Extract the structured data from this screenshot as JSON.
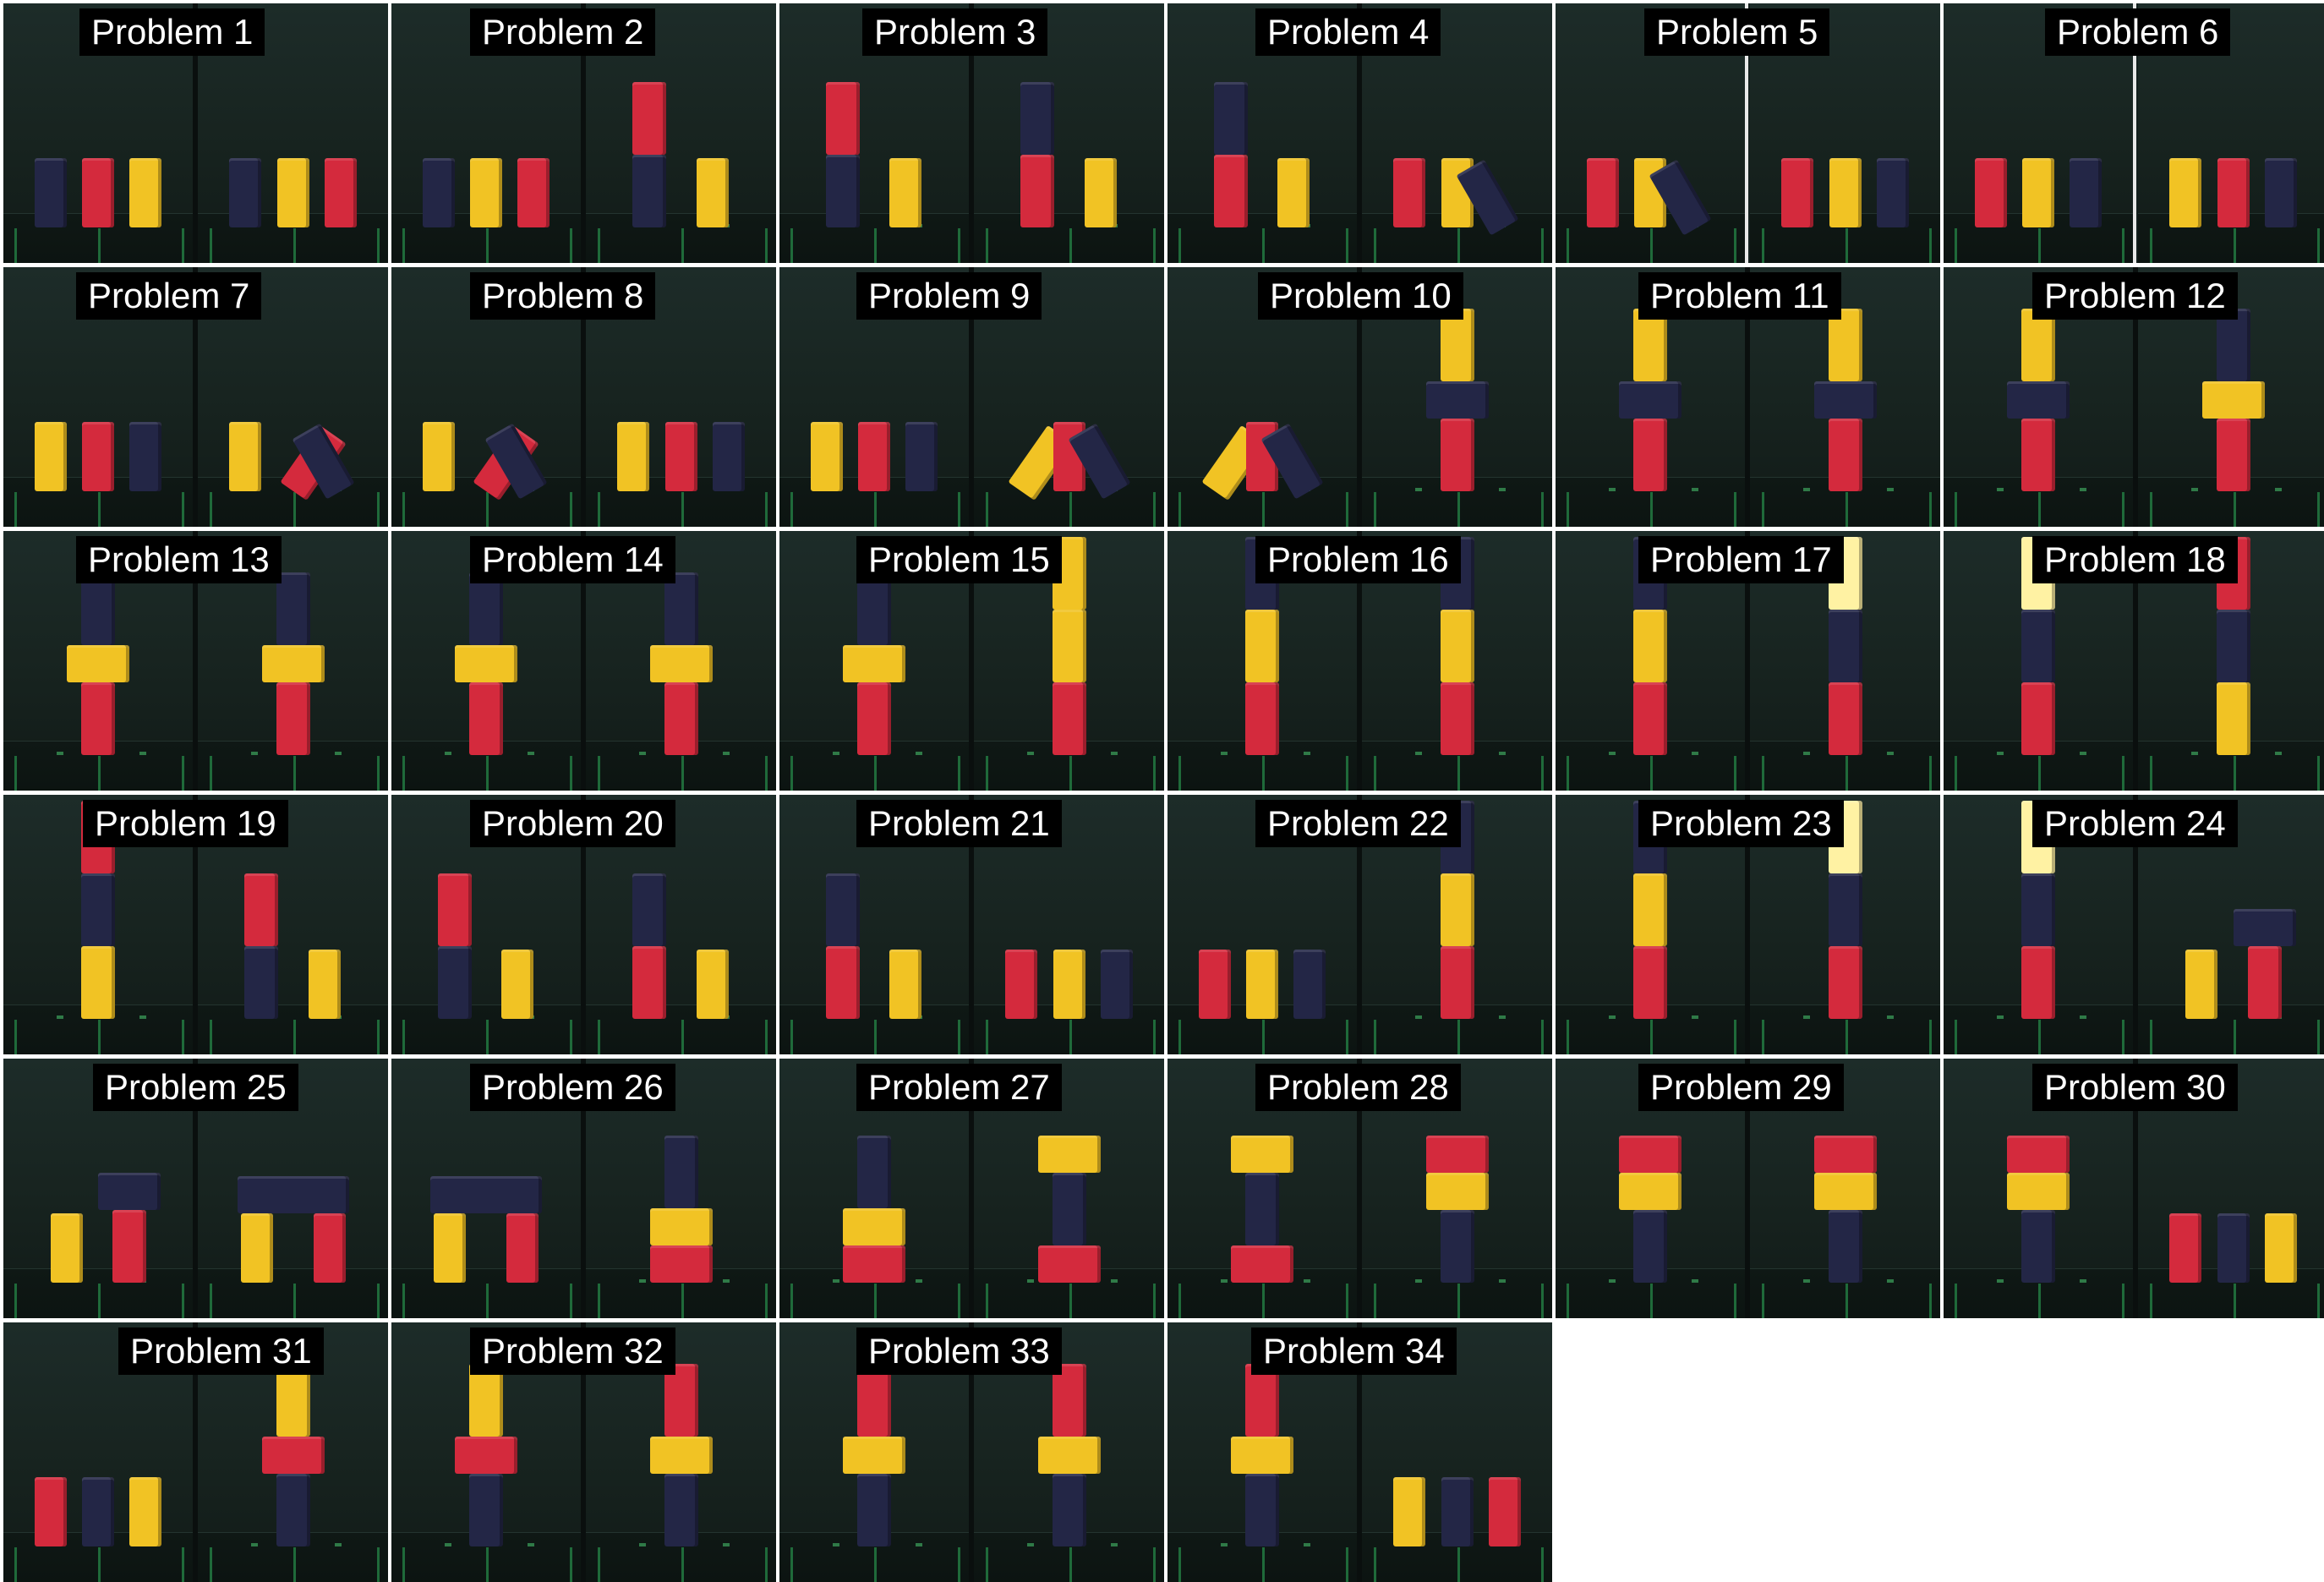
{
  "problems": [
    {
      "label": "Problem 1",
      "left": [
        {
          "c": "navy"
        },
        {
          "c": "red"
        },
        {
          "c": "yellow"
        }
      ],
      "right": [
        {
          "c": "navy"
        },
        {
          "c": "yellow"
        },
        {
          "c": "red"
        }
      ]
    },
    {
      "label": "Problem 2",
      "left": [
        {
          "c": "navy"
        },
        {
          "c": "yellow"
        },
        {
          "c": "red"
        }
      ],
      "right": [
        {
          "c": "stack",
          "s": [
            "navy",
            "red"
          ]
        },
        {
          "c": "yellow"
        }
      ]
    },
    {
      "label": "Problem 3",
      "left": [
        {
          "c": "stack",
          "s": [
            "navy",
            "red"
          ]
        },
        {
          "c": "yellow"
        }
      ],
      "right": [
        {
          "c": "stack",
          "s": [
            "red",
            "navy"
          ]
        },
        {
          "c": "yellow"
        }
      ]
    },
    {
      "label": "Problem 4",
      "left": [
        {
          "c": "stack",
          "s": [
            "red",
            "navy"
          ]
        },
        {
          "c": "yellow"
        }
      ],
      "right": [
        {
          "c": "red"
        },
        {
          "c": "yellow"
        },
        {
          "c": "navy",
          "tilt": -30
        }
      ]
    },
    {
      "label": "Problem 5",
      "left": [
        {
          "c": "red"
        },
        {
          "c": "yellow"
        },
        {
          "c": "navy",
          "tilt": -30
        }
      ],
      "right": [
        {
          "c": "red"
        },
        {
          "c": "yellow"
        },
        {
          "c": "navy"
        }
      ],
      "white_divider": true
    },
    {
      "label": "Problem 6",
      "left": [
        {
          "c": "red"
        },
        {
          "c": "yellow"
        },
        {
          "c": "navy"
        }
      ],
      "right": [
        {
          "c": "yellow"
        },
        {
          "c": "red"
        },
        {
          "c": "navy"
        }
      ],
      "white_divider": true
    },
    {
      "label": "Problem 7",
      "left": [
        {
          "c": "yellow"
        },
        {
          "c": "red"
        },
        {
          "c": "navy"
        }
      ],
      "right": [
        {
          "c": "yellow"
        },
        {
          "c": "red",
          "tilt": 35
        },
        {
          "c": "navy",
          "tilt": -30
        }
      ]
    },
    {
      "label": "Problem 8",
      "left": [
        {
          "c": "yellow"
        },
        {
          "c": "red",
          "tilt": 35
        },
        {
          "c": "navy",
          "tilt": -30
        }
      ],
      "right": [
        {
          "c": "yellow"
        },
        {
          "c": "red"
        },
        {
          "c": "navy"
        }
      ]
    },
    {
      "label": "Problem 9",
      "left": [
        {
          "c": "yellow"
        },
        {
          "c": "red"
        },
        {
          "c": "navy"
        }
      ],
      "right": [
        {
          "c": "yellow",
          "tilt": 35
        },
        {
          "c": "red"
        },
        {
          "c": "navy",
          "tilt": -30
        }
      ]
    },
    {
      "label": "Problem 10",
      "left": [
        {
          "c": "yellow",
          "tilt": 35
        },
        {
          "c": "red"
        },
        {
          "c": "navy",
          "tilt": -30
        }
      ],
      "right": [
        {
          "c": "stack",
          "s": [
            "red",
            "navy-wide",
            "yellow"
          ]
        }
      ]
    },
    {
      "label": "Problem 11",
      "left": [
        {
          "c": "stack",
          "s": [
            "red",
            "navy-wide",
            "yellow"
          ]
        }
      ],
      "right": [
        {
          "c": "stack",
          "s": [
            "red",
            "navy-wide",
            "yellow"
          ]
        }
      ]
    },
    {
      "label": "Problem 12",
      "left": [
        {
          "c": "stack",
          "s": [
            "red",
            "navy-wide",
            "yellow"
          ]
        }
      ],
      "right": [
        {
          "c": "stack",
          "s": [
            "red",
            "yellow-wide",
            "navy"
          ]
        }
      ]
    },
    {
      "label": "Problem 13",
      "left": [
        {
          "c": "stack",
          "s": [
            "red",
            "yellow-wide",
            "navy"
          ]
        }
      ],
      "right": [
        {
          "c": "stack",
          "s": [
            "red",
            "yellow-wide",
            "navy"
          ]
        }
      ]
    },
    {
      "label": "Problem 14",
      "left": [
        {
          "c": "stack",
          "s": [
            "red",
            "yellow-wide",
            "navy"
          ]
        }
      ],
      "right": [
        {
          "c": "stack",
          "s": [
            "red",
            "yellow-wide",
            "navy"
          ]
        }
      ]
    },
    {
      "label": "Problem 15",
      "left": [
        {
          "c": "stack",
          "s": [
            "red",
            "yellow-wide",
            "navy"
          ]
        }
      ],
      "right": [
        {
          "c": "stack",
          "s": [
            "red",
            "yellow",
            "yellow"
          ]
        }
      ]
    },
    {
      "label": "Problem 16",
      "left": [
        {
          "c": "stack",
          "s": [
            "red",
            "yellow",
            "navy"
          ]
        }
      ],
      "right": [
        {
          "c": "stack",
          "s": [
            "red",
            "yellow",
            "navy"
          ]
        }
      ]
    },
    {
      "label": "Problem 17",
      "left": [
        {
          "c": "stack",
          "s": [
            "red",
            "yellow",
            "navy"
          ]
        }
      ],
      "right": [
        {
          "c": "stack",
          "s": [
            "red",
            "navy",
            "light"
          ]
        }
      ]
    },
    {
      "label": "Problem 18",
      "left": [
        {
          "c": "stack",
          "s": [
            "red",
            "navy",
            "light"
          ]
        }
      ],
      "right": [
        {
          "c": "stack",
          "s": [
            "yellow",
            "navy",
            "red"
          ]
        }
      ]
    },
    {
      "label": "Problem 19",
      "left": [
        {
          "c": "stack",
          "s": [
            "yellow",
            "navy",
            "red"
          ]
        }
      ],
      "right": [
        {
          "c": "stack",
          "s": [
            "navy",
            "red"
          ]
        },
        {
          "c": "yellow"
        }
      ]
    },
    {
      "label": "Problem 20",
      "left": [
        {
          "c": "stack",
          "s": [
            "navy",
            "red"
          ]
        },
        {
          "c": "yellow"
        }
      ],
      "right": [
        {
          "c": "stack",
          "s": [
            "red",
            "navy"
          ]
        },
        {
          "c": "yellow"
        }
      ]
    },
    {
      "label": "Problem 21",
      "left": [
        {
          "c": "stack",
          "s": [
            "red",
            "navy"
          ]
        },
        {
          "c": "yellow"
        }
      ],
      "right": [
        {
          "c": "red"
        },
        {
          "c": "yellow"
        },
        {
          "c": "navy"
        }
      ]
    },
    {
      "label": "Problem 22",
      "left": [
        {
          "c": "red"
        },
        {
          "c": "yellow"
        },
        {
          "c": "navy"
        }
      ],
      "right": [
        {
          "c": "stack",
          "s": [
            "red",
            "yellow",
            "navy"
          ]
        }
      ]
    },
    {
      "label": "Problem 23",
      "left": [
        {
          "c": "stack",
          "s": [
            "red",
            "yellow",
            "navy"
          ]
        }
      ],
      "right": [
        {
          "c": "stack",
          "s": [
            "red",
            "navy",
            "light"
          ]
        }
      ]
    },
    {
      "label": "Problem 24",
      "left": [
        {
          "c": "stack",
          "s": [
            "red",
            "navy",
            "light"
          ]
        }
      ],
      "right": [
        {
          "c": "yellow"
        },
        {
          "c": "stack",
          "s": [
            "red",
            "navy-wide"
          ]
        }
      ]
    },
    {
      "label": "Problem 25",
      "left": [
        {
          "c": "yellow"
        },
        {
          "c": "stack",
          "s": [
            "red",
            "navy-wide"
          ]
        }
      ],
      "right": [
        {
          "c": "arch",
          "legs": [
            "yellow",
            "red"
          ],
          "top": "navy"
        }
      ]
    },
    {
      "label": "Problem 26",
      "left": [
        {
          "c": "arch",
          "legs": [
            "yellow",
            "red"
          ],
          "top": "navy"
        }
      ],
      "right": [
        {
          "c": "stack",
          "s": [
            "red-wide",
            "yellow-wide",
            "navy"
          ]
        }
      ]
    },
    {
      "label": "Problem 27",
      "left": [
        {
          "c": "stack",
          "s": [
            "red-wide",
            "yellow-wide",
            "navy"
          ]
        }
      ],
      "right": [
        {
          "c": "stack",
          "s": [
            "red-wide",
            "navy",
            "yellow-wide"
          ]
        }
      ]
    },
    {
      "label": "Problem 28",
      "left": [
        {
          "c": "stack",
          "s": [
            "red-wide",
            "navy",
            "yellow-wide"
          ]
        }
      ],
      "right": [
        {
          "c": "stack",
          "s": [
            "navy",
            "yellow-wide",
            "red-wide"
          ]
        }
      ]
    },
    {
      "label": "Problem 29",
      "left": [
        {
          "c": "stack",
          "s": [
            "navy",
            "yellow-wide",
            "red-wide"
          ]
        }
      ],
      "right": [
        {
          "c": "stack",
          "s": [
            "navy",
            "yellow-wide",
            "red-wide"
          ]
        }
      ]
    },
    {
      "label": "Problem 30",
      "left": [
        {
          "c": "stack",
          "s": [
            "navy",
            "yellow-wide",
            "red-wide"
          ]
        }
      ],
      "right": [
        {
          "c": "red"
        },
        {
          "c": "navy"
        },
        {
          "c": "yellow"
        }
      ]
    },
    {
      "label": "Problem 31",
      "left": [
        {
          "c": "red"
        },
        {
          "c": "navy"
        },
        {
          "c": "yellow"
        }
      ],
      "right": [
        {
          "c": "stack",
          "s": [
            "navy",
            "red-wide",
            "yellow"
          ]
        }
      ]
    },
    {
      "label": "Problem 32",
      "left": [
        {
          "c": "stack",
          "s": [
            "navy",
            "red-wide",
            "yellow"
          ]
        }
      ],
      "right": [
        {
          "c": "stack",
          "s": [
            "navy",
            "yellow-wide",
            "red"
          ]
        }
      ]
    },
    {
      "label": "Problem 33",
      "left": [
        {
          "c": "stack",
          "s": [
            "navy",
            "yellow-wide",
            "red"
          ]
        }
      ],
      "right": [
        {
          "c": "stack",
          "s": [
            "navy",
            "yellow-wide",
            "red"
          ]
        }
      ]
    },
    {
      "label": "Problem 34",
      "left": [
        {
          "c": "stack",
          "s": [
            "navy",
            "yellow-wide",
            "red"
          ]
        }
      ],
      "right": [
        {
          "c": "yellow"
        },
        {
          "c": "navy"
        },
        {
          "c": "red"
        }
      ]
    }
  ],
  "colors": {
    "red": "#d42a3d",
    "yellow": "#f1c324",
    "navy": "#232646",
    "light": "#fff2a3"
  }
}
